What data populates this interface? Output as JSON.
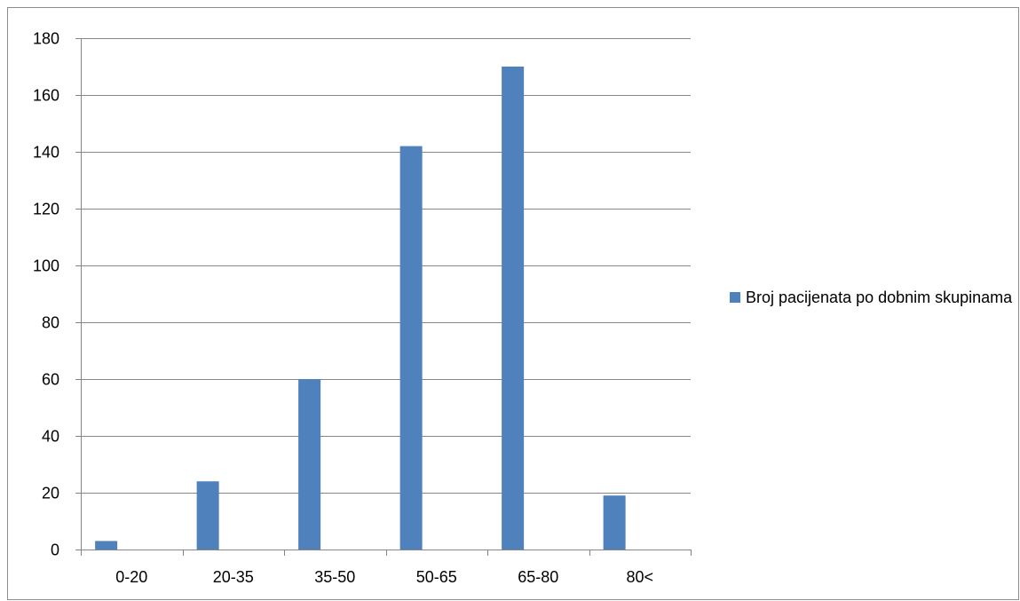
{
  "chart_data": {
    "type": "bar",
    "categories": [
      "0-20",
      "20-35",
      "35-50",
      "50-65",
      "65-80",
      "80<"
    ],
    "series": [
      {
        "name": "Broj pacijenata po dobnim skupinama",
        "values": [
          3,
          24,
          60,
          142,
          170,
          19
        ],
        "color": "#4f81bd"
      }
    ],
    "ylim": [
      0,
      180
    ],
    "yticks": [
      0,
      20,
      40,
      60,
      80,
      100,
      120,
      140,
      160,
      180
    ],
    "grid": true,
    "legend": "right",
    "title": "",
    "xlabel": "",
    "ylabel": ""
  },
  "legend": {
    "label": "Broj pacijenata po dobnim skupinama",
    "color": "#4f81bd"
  }
}
